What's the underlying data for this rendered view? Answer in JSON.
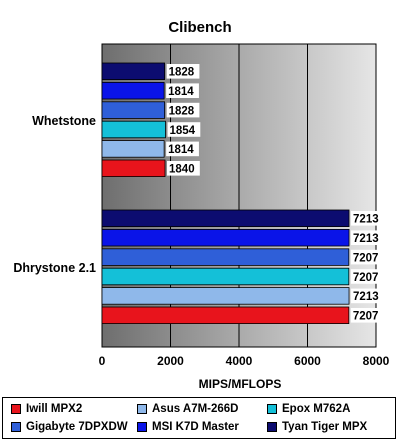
{
  "chart_data": {
    "type": "bar",
    "orientation": "horizontal",
    "title": "Clibench",
    "xlabel": "MIPS/MFLOPS",
    "ylabel": "",
    "xlim": [
      0,
      8000
    ],
    "xticks": [
      "0",
      "2000",
      "4000",
      "6000",
      "8000"
    ],
    "grid": true,
    "legend_position": "bottom",
    "categories": [
      "Whetstone",
      "Dhrystone 2.1"
    ],
    "series": [
      {
        "name": "Iwill MPX2",
        "color": "#e8141c",
        "values": [
          1840,
          7207
        ]
      },
      {
        "name": "Asus A7M-266D",
        "color": "#8fb8ea",
        "values": [
          1814,
          7213
        ]
      },
      {
        "name": "Epox M762A",
        "color": "#14c0d8",
        "values": [
          1854,
          7207
        ]
      },
      {
        "name": "Gigabyte 7DPXDW",
        "color": "#2f5fd8",
        "values": [
          1828,
          7207
        ]
      },
      {
        "name": "MSI K7D Master",
        "color": "#0a14e8",
        "values": [
          1814,
          7213
        ]
      },
      {
        "name": "Tyan Tiger MPX",
        "color": "#0c0c70",
        "values": [
          1828,
          7213
        ]
      }
    ]
  }
}
